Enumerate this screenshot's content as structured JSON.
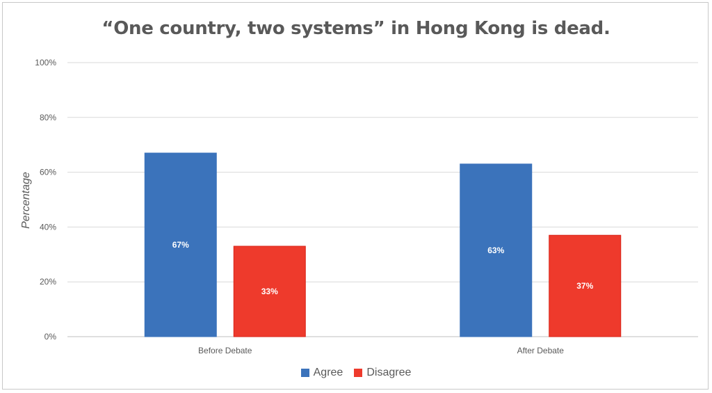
{
  "chart_data": {
    "type": "bar",
    "title": "“One country, two systems” in Hong Kong is dead.",
    "xlabel": "",
    "ylabel": "Percentage",
    "categories": [
      "Before Debate",
      "After Debate"
    ],
    "series": [
      {
        "name": "Agree",
        "values": [
          67,
          63
        ],
        "labels": [
          "67%",
          "63%"
        ],
        "color": "#3b73bb",
        "border": "#3b73bb"
      },
      {
        "name": "Disagree",
        "values": [
          33,
          37
        ],
        "labels": [
          "33%",
          "37%"
        ],
        "color": "#ee3a2c",
        "border": "#d92216"
      }
    ],
    "ylim": [
      0,
      100
    ],
    "yticks": [
      0,
      20,
      40,
      60,
      80,
      100
    ],
    "ytick_labels": [
      "0%",
      "20%",
      "40%",
      "60%",
      "80%",
      "100%"
    ],
    "grid": true,
    "legend_position": "bottom"
  }
}
